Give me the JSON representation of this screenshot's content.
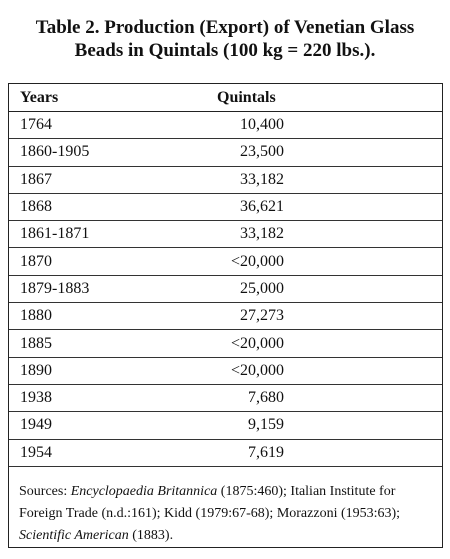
{
  "title": {
    "line1": "Table 2.  Production (Export) of Venetian Glass",
    "line2": "Beads in Quintals (100 kg = 220 lbs.)."
  },
  "table": {
    "header": [
      "Years",
      "Quintals"
    ],
    "rows": [
      [
        "1764",
        "10,400"
      ],
      [
        "1860-1905",
        "23,500"
      ],
      [
        "1867",
        "33,182"
      ],
      [
        "1868",
        "36,621"
      ],
      [
        "1861-1871",
        "33,182"
      ],
      [
        "1870",
        "<20,000"
      ],
      [
        "1879-1883",
        "25,000"
      ],
      [
        "1880",
        "27,273"
      ],
      [
        "1885",
        "<20,000"
      ],
      [
        "1890",
        "<20,000"
      ],
      [
        "1938",
        "7,680"
      ],
      [
        "1949",
        "9,159"
      ],
      [
        "1954",
        "7,619"
      ]
    ]
  },
  "sources": [
    "Sources: ",
    "Encyclopaedia Britannica",
    " (1875:460); Italian Institute for Foreign Trade (n.d.:161); Kidd (1979:67-68); Morazzoni (1953:63); ",
    "Scientific American",
    " (1883)."
  ]
}
